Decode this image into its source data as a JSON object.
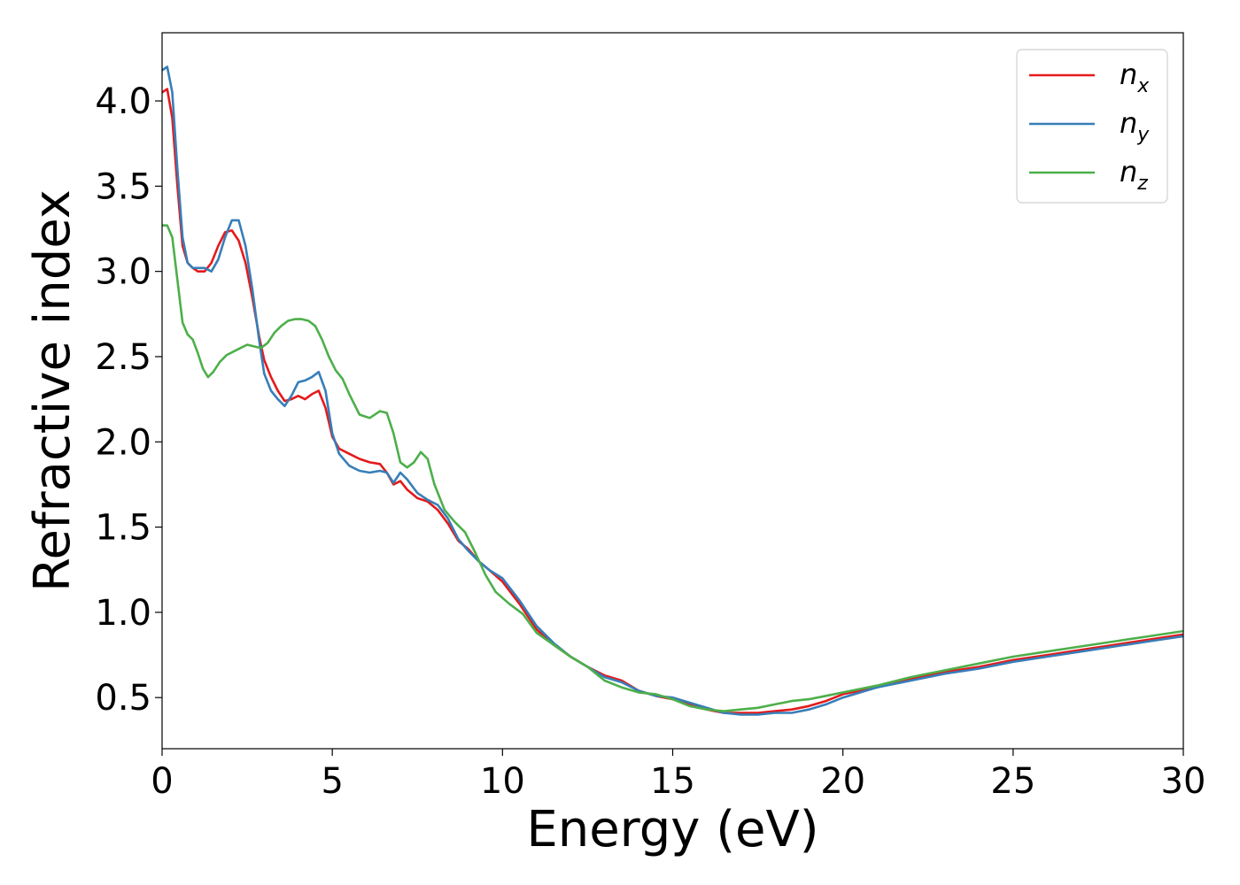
{
  "chart_data": {
    "type": "line",
    "title": "",
    "xlabel": "Energy (eV)",
    "ylabel": "Refractive index",
    "xlim": [
      0,
      30
    ],
    "ylim": [
      0.2,
      4.4
    ],
    "xticks": [
      0,
      5,
      10,
      15,
      20,
      25,
      30
    ],
    "xtick_labels": [
      "0",
      "5",
      "10",
      "15",
      "20",
      "25",
      "30"
    ],
    "yticks": [
      0.5,
      1.0,
      1.5,
      2.0,
      2.5,
      3.0,
      3.5,
      4.0
    ],
    "ytick_labels": [
      "0.5",
      "1.0",
      "1.5",
      "2.0",
      "2.5",
      "3.0",
      "3.5",
      "4.0"
    ],
    "grid": false,
    "legend_position": "top-right",
    "series": [
      {
        "name": "n_x",
        "legend_base": "n",
        "legend_sub": "x",
        "color": "#e41a1c",
        "x": [
          0,
          0.15,
          0.3,
          0.45,
          0.6,
          0.75,
          0.9,
          1.05,
          1.25,
          1.45,
          1.65,
          1.85,
          2.05,
          2.25,
          2.45,
          2.65,
          2.85,
          3.0,
          3.2,
          3.4,
          3.6,
          3.8,
          4.0,
          4.2,
          4.4,
          4.6,
          4.8,
          5.0,
          5.2,
          5.5,
          5.8,
          6.1,
          6.4,
          6.6,
          6.8,
          7.0,
          7.2,
          7.5,
          7.8,
          8.1,
          8.4,
          8.7,
          9.0,
          9.3,
          9.6,
          10.0,
          10.5,
          11.0,
          11.5,
          12.0,
          12.5,
          13.0,
          13.5,
          14.0,
          14.5,
          15.0,
          15.5,
          16.0,
          16.5,
          17.0,
          17.5,
          18.0,
          18.5,
          19.0,
          19.5,
          20.0,
          21.0,
          22.0,
          23.0,
          24.0,
          25.0,
          26.0,
          27.0,
          28.0,
          29.0,
          30.0
        ],
        "y": [
          4.05,
          4.07,
          3.9,
          3.5,
          3.15,
          3.05,
          3.02,
          3.0,
          3.0,
          3.05,
          3.15,
          3.23,
          3.24,
          3.18,
          3.05,
          2.85,
          2.62,
          2.48,
          2.38,
          2.3,
          2.24,
          2.25,
          2.27,
          2.25,
          2.28,
          2.3,
          2.2,
          2.03,
          1.96,
          1.93,
          1.9,
          1.88,
          1.87,
          1.82,
          1.75,
          1.77,
          1.72,
          1.67,
          1.65,
          1.6,
          1.52,
          1.42,
          1.37,
          1.3,
          1.25,
          1.18,
          1.05,
          0.9,
          0.81,
          0.74,
          0.68,
          0.63,
          0.6,
          0.54,
          0.51,
          0.49,
          0.46,
          0.43,
          0.41,
          0.41,
          0.41,
          0.42,
          0.43,
          0.45,
          0.48,
          0.52,
          0.56,
          0.61,
          0.65,
          0.68,
          0.72,
          0.75,
          0.78,
          0.81,
          0.84,
          0.87
        ]
      },
      {
        "name": "n_y",
        "legend_base": "n",
        "legend_sub": "y",
        "color": "#377eb8",
        "x": [
          0,
          0.15,
          0.3,
          0.45,
          0.6,
          0.75,
          0.9,
          1.05,
          1.25,
          1.45,
          1.65,
          1.85,
          2.05,
          2.25,
          2.45,
          2.65,
          2.85,
          3.0,
          3.2,
          3.4,
          3.6,
          3.8,
          4.0,
          4.2,
          4.4,
          4.6,
          4.8,
          5.0,
          5.2,
          5.5,
          5.8,
          6.1,
          6.4,
          6.6,
          6.8,
          7.0,
          7.2,
          7.5,
          7.8,
          8.1,
          8.4,
          8.7,
          9.0,
          9.3,
          9.6,
          10.0,
          10.5,
          11.0,
          11.5,
          12.0,
          12.5,
          13.0,
          13.5,
          14.0,
          14.5,
          15.0,
          15.5,
          16.0,
          16.5,
          17.0,
          17.5,
          18.0,
          18.5,
          19.0,
          19.5,
          20.0,
          21.0,
          22.0,
          23.0,
          24.0,
          25.0,
          26.0,
          27.0,
          28.0,
          29.0,
          30.0
        ],
        "y": [
          4.18,
          4.2,
          4.05,
          3.6,
          3.2,
          3.05,
          3.02,
          3.02,
          3.02,
          3.0,
          3.07,
          3.2,
          3.3,
          3.3,
          3.15,
          2.9,
          2.6,
          2.4,
          2.3,
          2.25,
          2.21,
          2.27,
          2.35,
          2.36,
          2.38,
          2.41,
          2.3,
          2.05,
          1.93,
          1.86,
          1.83,
          1.82,
          1.83,
          1.82,
          1.76,
          1.82,
          1.78,
          1.7,
          1.66,
          1.63,
          1.55,
          1.43,
          1.36,
          1.3,
          1.25,
          1.2,
          1.07,
          0.92,
          0.82,
          0.74,
          0.68,
          0.62,
          0.59,
          0.54,
          0.51,
          0.5,
          0.47,
          0.44,
          0.41,
          0.4,
          0.4,
          0.41,
          0.41,
          0.43,
          0.46,
          0.5,
          0.56,
          0.6,
          0.64,
          0.67,
          0.71,
          0.74,
          0.77,
          0.8,
          0.83,
          0.86
        ]
      },
      {
        "name": "n_z",
        "legend_base": "n",
        "legend_sub": "z",
        "color": "#4daf4a",
        "x": [
          0,
          0.15,
          0.3,
          0.45,
          0.6,
          0.75,
          0.9,
          1.05,
          1.2,
          1.35,
          1.5,
          1.7,
          1.9,
          2.1,
          2.3,
          2.5,
          2.7,
          2.9,
          3.1,
          3.3,
          3.5,
          3.7,
          3.9,
          4.1,
          4.3,
          4.5,
          4.7,
          4.9,
          5.1,
          5.3,
          5.5,
          5.8,
          6.1,
          6.4,
          6.6,
          6.8,
          7.0,
          7.2,
          7.4,
          7.6,
          7.8,
          8.0,
          8.3,
          8.6,
          8.9,
          9.2,
          9.5,
          9.8,
          10.2,
          10.6,
          11.0,
          11.5,
          12.0,
          12.5,
          13.0,
          13.5,
          14.0,
          14.5,
          15.0,
          15.5,
          16.0,
          16.5,
          17.0,
          17.5,
          18.0,
          18.5,
          19.0,
          19.5,
          20.0,
          21.0,
          22.0,
          23.0,
          24.0,
          25.0,
          26.0,
          27.0,
          28.0,
          29.0,
          30.0
        ],
        "y": [
          3.27,
          3.27,
          3.2,
          2.95,
          2.7,
          2.63,
          2.6,
          2.52,
          2.43,
          2.38,
          2.41,
          2.47,
          2.51,
          2.53,
          2.55,
          2.57,
          2.56,
          2.55,
          2.58,
          2.64,
          2.68,
          2.71,
          2.72,
          2.72,
          2.71,
          2.68,
          2.6,
          2.5,
          2.42,
          2.37,
          2.28,
          2.16,
          2.14,
          2.18,
          2.17,
          2.05,
          1.88,
          1.85,
          1.88,
          1.94,
          1.9,
          1.75,
          1.6,
          1.53,
          1.47,
          1.35,
          1.22,
          1.12,
          1.05,
          0.99,
          0.88,
          0.81,
          0.74,
          0.68,
          0.6,
          0.56,
          0.53,
          0.52,
          0.49,
          0.45,
          0.43,
          0.42,
          0.43,
          0.44,
          0.46,
          0.48,
          0.49,
          0.51,
          0.53,
          0.57,
          0.62,
          0.66,
          0.7,
          0.74,
          0.77,
          0.8,
          0.83,
          0.86,
          0.89
        ]
      }
    ]
  }
}
